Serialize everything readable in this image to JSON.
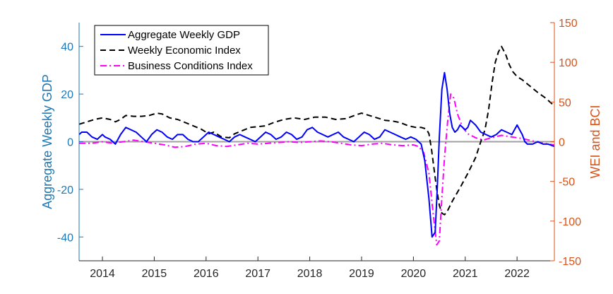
{
  "chart_data": {
    "type": "line",
    "title": "",
    "xlabel": "",
    "ylabel_left": "Aggregate Weekly GDP",
    "ylabel_right": "WEI and BCI",
    "xlim": [
      2013.55,
      2022.72
    ],
    "ylim_left": [
      -50,
      50
    ],
    "ylim_right": [
      -150,
      150
    ],
    "x_ticks": [
      2014,
      2015,
      2016,
      2017,
      2018,
      2019,
      2020,
      2021,
      2022
    ],
    "x_tick_labels": [
      "2014",
      "2015",
      "2016",
      "2017",
      "2018",
      "2019",
      "2020",
      "2021",
      "2022"
    ],
    "y_ticks_left": [
      -40,
      -20,
      0,
      20,
      40
    ],
    "y_tick_labels_left": [
      "-40",
      "-20",
      "0",
      "20",
      "40"
    ],
    "y_ticks_right": [
      -150,
      -100,
      -50,
      0,
      50,
      100,
      150
    ],
    "y_tick_labels_right": [
      "-150",
      "-100",
      "-50",
      "0",
      "50",
      "100",
      "150"
    ],
    "colors": {
      "left_axis": "#1f77b4",
      "right_axis": "#d95319",
      "zero_line": "#a0a0a0"
    },
    "legend": {
      "placement": "top-left",
      "entries": [
        "Aggregate Weekly GDP",
        "Weekly Economic Index",
        "Business Conditions Index"
      ]
    },
    "series": [
      {
        "name": "Aggregate Weekly GDP",
        "axis": "left",
        "color": "#0000ff",
        "dash": "solid",
        "x": [
          2013.55,
          2013.6,
          2013.7,
          2013.8,
          2013.9,
          2014.0,
          2014.05,
          2014.15,
          2014.25,
          2014.35,
          2014.45,
          2014.55,
          2014.65,
          2014.75,
          2014.85,
          2014.95,
          2015.05,
          2015.15,
          2015.25,
          2015.35,
          2015.45,
          2015.55,
          2015.65,
          2015.75,
          2015.85,
          2015.95,
          2016.05,
          2016.15,
          2016.25,
          2016.35,
          2016.45,
          2016.55,
          2016.65,
          2016.75,
          2016.85,
          2016.95,
          2017.05,
          2017.15,
          2017.25,
          2017.35,
          2017.45,
          2017.55,
          2017.65,
          2017.75,
          2017.85,
          2017.95,
          2018.05,
          2018.15,
          2018.25,
          2018.35,
          2018.45,
          2018.55,
          2018.65,
          2018.75,
          2018.85,
          2018.95,
          2019.05,
          2019.15,
          2019.25,
          2019.35,
          2019.45,
          2019.55,
          2019.65,
          2019.75,
          2019.85,
          2019.95,
          2020.05,
          2020.1,
          2020.15,
          2020.22,
          2020.3,
          2020.36,
          2020.42,
          2020.46,
          2020.5,
          2020.55,
          2020.6,
          2020.65,
          2020.7,
          2020.75,
          2020.8,
          2020.85,
          2020.9,
          2020.95,
          2021.0,
          2021.05,
          2021.1,
          2021.2,
          2021.3,
          2021.4,
          2021.5,
          2021.6,
          2021.7,
          2021.8,
          2021.9,
          2022.0,
          2022.05,
          2022.1,
          2022.15,
          2022.2,
          2022.3,
          2022.4,
          2022.5,
          2022.6,
          2022.72
        ],
        "values": [
          3,
          4,
          4,
          2,
          1,
          3,
          2,
          1,
          -1,
          3,
          6,
          5,
          4,
          2,
          0,
          3,
          5,
          4,
          2,
          1,
          3,
          3,
          1,
          0,
          0,
          2,
          4,
          3,
          2,
          1,
          0,
          2,
          3,
          2,
          1,
          0,
          2,
          4,
          3,
          1,
          2,
          4,
          3,
          1,
          2,
          5,
          6,
          4,
          3,
          2,
          3,
          4,
          2,
          1,
          0,
          2,
          4,
          3,
          1,
          2,
          5,
          4,
          3,
          2,
          1,
          2,
          1,
          0,
          -1,
          -8,
          -24,
          -40,
          -38,
          -20,
          2,
          22,
          29,
          22,
          12,
          6,
          4,
          5,
          7,
          6,
          5,
          6,
          9,
          7,
          4,
          3,
          2,
          3,
          5,
          4,
          3,
          7,
          5,
          3,
          0,
          -1,
          -1,
          0,
          -1,
          -1,
          -2
        ]
      },
      {
        "name": "Weekly Economic Index",
        "axis": "right",
        "color": "#000000",
        "dash": "dashed",
        "x": [
          2013.55,
          2013.7,
          2013.85,
          2014.0,
          2014.15,
          2014.25,
          2014.35,
          2014.45,
          2014.6,
          2014.75,
          2014.9,
          2015.05,
          2015.15,
          2015.3,
          2015.45,
          2015.6,
          2015.75,
          2015.9,
          2016.05,
          2016.15,
          2016.3,
          2016.45,
          2016.55,
          2016.7,
          2016.85,
          2017.0,
          2017.15,
          2017.3,
          2017.5,
          2017.7,
          2017.9,
          2018.1,
          2018.3,
          2018.5,
          2018.7,
          2018.9,
          2019.0,
          2019.15,
          2019.3,
          2019.45,
          2019.6,
          2019.75,
          2019.9,
          2020.05,
          2020.15,
          2020.25,
          2020.3,
          2020.35,
          2020.4,
          2020.45,
          2020.5,
          2020.55,
          2020.6,
          2020.65,
          2020.75,
          2020.9,
          2021.05,
          2021.2,
          2021.3,
          2021.38,
          2021.45,
          2021.52,
          2021.58,
          2021.64,
          2021.7,
          2021.78,
          2021.85,
          2021.92,
          2022.0,
          2022.1,
          2022.25,
          2022.4,
          2022.55,
          2022.72
        ],
        "values": [
          22,
          25,
          28,
          30,
          28,
          25,
          28,
          33,
          32,
          32,
          33,
          36,
          35,
          30,
          28,
          24,
          20,
          16,
          10,
          12,
          6,
          5,
          10,
          14,
          18,
          19,
          20,
          24,
          28,
          30,
          28,
          31,
          31,
          28,
          29,
          34,
          36,
          33,
          30,
          27,
          26,
          24,
          20,
          18,
          18,
          16,
          10,
          -10,
          -35,
          -60,
          -80,
          -90,
          -92,
          -88,
          -75,
          -58,
          -40,
          -20,
          0,
          15,
          40,
          75,
          100,
          113,
          120,
          110,
          97,
          88,
          82,
          78,
          70,
          62,
          55,
          45
        ]
      },
      {
        "name": "Business Conditions Index",
        "axis": "right",
        "color": "#ff00ff",
        "dash": "dashdot",
        "x": [
          2013.55,
          2013.8,
          2014.0,
          2014.2,
          2014.4,
          2014.6,
          2014.8,
          2015.0,
          2015.2,
          2015.4,
          2015.6,
          2015.8,
          2016.0,
          2016.2,
          2016.4,
          2016.6,
          2016.8,
          2017.0,
          2017.2,
          2017.4,
          2017.6,
          2017.8,
          2018.0,
          2018.2,
          2018.4,
          2018.6,
          2018.8,
          2019.0,
          2019.2,
          2019.4,
          2019.6,
          2019.8,
          2020.0,
          2020.1,
          2020.2,
          2020.3,
          2020.38,
          2020.45,
          2020.5,
          2020.55,
          2020.6,
          2020.66,
          2020.72,
          2020.78,
          2020.85,
          2020.95,
          2021.05,
          2021.2,
          2021.35,
          2021.5,
          2021.7,
          2021.9,
          2022.1,
          2022.3,
          2022.5,
          2022.72
        ],
        "values": [
          -2,
          -2,
          0,
          -2,
          0,
          2,
          0,
          -2,
          -4,
          -7,
          -6,
          -3,
          -2,
          -5,
          -6,
          -4,
          -2,
          -3,
          -2,
          -1,
          0,
          -1,
          0,
          1,
          0,
          -2,
          -4,
          -5,
          -3,
          -2,
          -4,
          -5,
          -4,
          -6,
          -14,
          -40,
          -90,
          -130,
          -125,
          -70,
          -20,
          25,
          60,
          55,
          35,
          18,
          10,
          5,
          2,
          5,
          8,
          6,
          4,
          1,
          -2,
          -4
        ]
      }
    ]
  }
}
